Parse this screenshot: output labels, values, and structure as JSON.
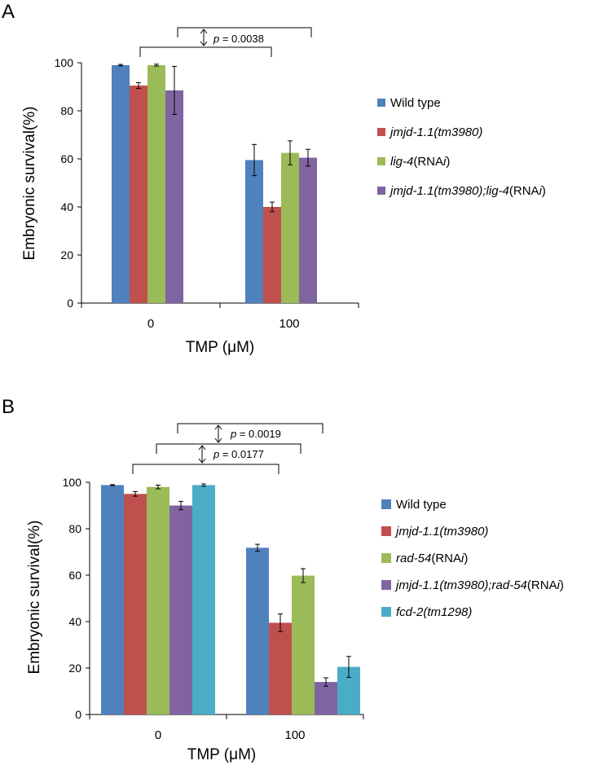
{
  "chart_data": [
    {
      "panel": "A",
      "type": "bar",
      "categories": [
        "0",
        "100"
      ],
      "xlabel": "TMP (μM)",
      "ylabel": "Embryonic survival(%)",
      "ylim": [
        0,
        100
      ],
      "yticks": [
        0,
        20,
        40,
        60,
        80,
        100
      ],
      "series": [
        {
          "name_parts": [
            {
              "text": "Wild type",
              "italic": false
            }
          ],
          "color": "#4F81BD",
          "values": [
            99,
            59.5
          ],
          "errors": [
            0.3,
            6.5
          ]
        },
        {
          "name_parts": [
            {
              "text": "jmjd-1.1(tm3980)",
              "italic": true
            }
          ],
          "color": "#C0504D",
          "values": [
            90.5,
            40
          ],
          "errors": [
            1.2,
            2
          ]
        },
        {
          "name_parts": [
            {
              "text": "lig-4",
              "italic": true
            },
            {
              "text": "(RNA",
              "italic": false
            },
            {
              "text": "i",
              "italic": true
            },
            {
              "text": ")",
              "italic": false
            }
          ],
          "color": "#9BBB59",
          "values": [
            99,
            62.5
          ],
          "errors": [
            0.4,
            5
          ]
        },
        {
          "name_parts": [
            {
              "text": "jmjd-1.1(tm3980);lig-4",
              "italic": true
            },
            {
              "text": "(RNA",
              "italic": false
            },
            {
              "text": "i",
              "italic": true
            },
            {
              "text": ")",
              "italic": false
            }
          ],
          "color": "#8064A2",
          "values": [
            88.5,
            60.5
          ],
          "errors": [
            10,
            3.5
          ]
        }
      ],
      "annotations": [
        {
          "label": "p",
          "value": "= 0.0038"
        }
      ]
    },
    {
      "panel": "B",
      "type": "bar",
      "categories": [
        "0",
        "100"
      ],
      "xlabel": "TMP (μM)",
      "ylabel": "Embryonic survival(%)",
      "ylim": [
        0,
        100
      ],
      "yticks": [
        0,
        20,
        40,
        60,
        80,
        100
      ],
      "series": [
        {
          "name_parts": [
            {
              "text": "Wild type",
              "italic": false
            }
          ],
          "color": "#4F81BD",
          "values": [
            98.8,
            71.8
          ],
          "errors": [
            0.2,
            1.5
          ]
        },
        {
          "name_parts": [
            {
              "text": "jmjd-1.1(tm3980)",
              "italic": true
            }
          ],
          "color": "#C0504D",
          "values": [
            95,
            39.5
          ],
          "errors": [
            1,
            3.8
          ]
        },
        {
          "name_parts": [
            {
              "text": "rad-54",
              "italic": true
            },
            {
              "text": "(RNA",
              "italic": false
            },
            {
              "text": "i",
              "italic": true
            },
            {
              "text": ")",
              "italic": false
            }
          ],
          "color": "#9BBB59",
          "values": [
            98,
            59.8
          ],
          "errors": [
            0.8,
            3
          ]
        },
        {
          "name_parts": [
            {
              "text": "jmjd-1.1(tm3980);rad-54",
              "italic": true
            },
            {
              "text": "(RNA",
              "italic": false
            },
            {
              "text": "i",
              "italic": true
            },
            {
              "text": ")",
              "italic": false
            }
          ],
          "color": "#8064A2",
          "values": [
            90,
            14
          ],
          "errors": [
            1.8,
            1.8
          ]
        },
        {
          "name_parts": [
            {
              "text": "fcd-2(tm1298)",
              "italic": true
            }
          ],
          "color": "#4BACC6",
          "values": [
            98.8,
            20.5
          ],
          "errors": [
            0.5,
            4.5
          ]
        }
      ],
      "annotations": [
        {
          "label": "p",
          "value": "= 0.0019"
        },
        {
          "label": "p",
          "value": "= 0.0177"
        }
      ]
    }
  ]
}
